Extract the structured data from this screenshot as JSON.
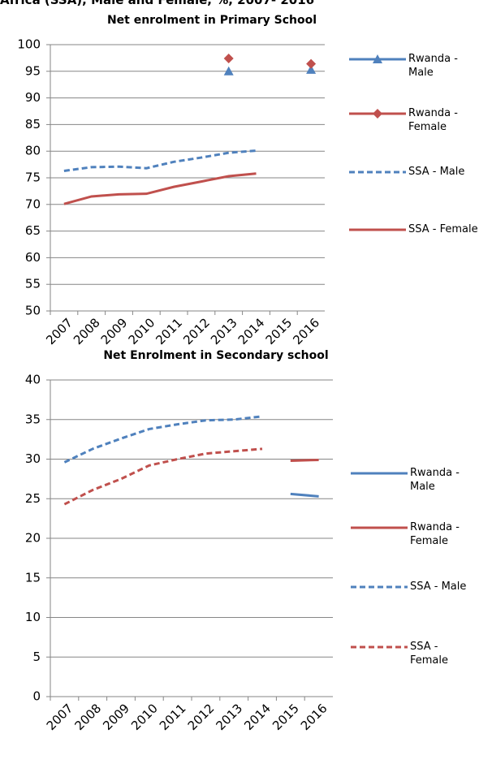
{
  "heading": "Africa (SSA), Male and Female, %, 2007- 2016",
  "chart_data": [
    {
      "type": "line",
      "title": "Net enrolment in Primary School",
      "categories": [
        "2007",
        "2008",
        "2009",
        "2010",
        "2011",
        "2012",
        "2013",
        "2014",
        "2015",
        "2016"
      ],
      "ylim": [
        50,
        100
      ],
      "yticks": [
        50,
        55,
        60,
        65,
        70,
        75,
        80,
        85,
        90,
        95,
        100
      ],
      "grid": true,
      "legend": "right",
      "series": [
        {
          "name": "Rwanda - Male",
          "color": "#4f81bd",
          "marker": "triangle",
          "dashed": false,
          "values": [
            null,
            null,
            null,
            null,
            null,
            null,
            95,
            null,
            null,
            95.3
          ]
        },
        {
          "name": "Rwanda - Female",
          "color": "#c0504d",
          "marker": "diamond",
          "dashed": false,
          "values": [
            null,
            null,
            null,
            null,
            null,
            null,
            97.4,
            null,
            null,
            96.4
          ]
        },
        {
          "name": "SSA - Male",
          "color": "#4f81bd",
          "dashed": true,
          "values": [
            76.3,
            77,
            77.1,
            76.8,
            78,
            78.8,
            79.7,
            80.1,
            null,
            null
          ]
        },
        {
          "name": "SSA - Female",
          "color": "#c0504d",
          "dashed": false,
          "values": [
            70.1,
            71.5,
            71.9,
            72,
            73.3,
            74.3,
            75.3,
            75.8,
            null,
            null
          ]
        }
      ]
    },
    {
      "type": "line",
      "title": "Net Enrolment in Secondary school",
      "categories": [
        "2007",
        "2008",
        "2009",
        "2010",
        "2011",
        "2012",
        "2013",
        "2014",
        "2015",
        "2016"
      ],
      "ylim": [
        0,
        40
      ],
      "yticks": [
        0,
        5,
        10,
        15,
        20,
        25,
        30,
        35,
        40
      ],
      "grid": true,
      "legend": "right",
      "series": [
        {
          "name": "Rwanda - Male",
          "color": "#4f81bd",
          "dashed": false,
          "values": [
            null,
            null,
            null,
            null,
            null,
            null,
            null,
            null,
            25.6,
            25.3
          ]
        },
        {
          "name": "Rwanda - Female",
          "color": "#c0504d",
          "dashed": false,
          "values": [
            null,
            null,
            null,
            null,
            null,
            null,
            null,
            null,
            29.8,
            29.9
          ]
        },
        {
          "name": "SSA - Male",
          "color": "#4f81bd",
          "dashed": true,
          "values": [
            29.6,
            31.3,
            32.6,
            33.8,
            34.4,
            34.9,
            35.0,
            35.4,
            null,
            null
          ]
        },
        {
          "name": "SSA - Female",
          "color": "#c0504d",
          "dashed": true,
          "values": [
            24.3,
            26.1,
            27.5,
            29.2,
            30.0,
            30.7,
            31.0,
            31.3,
            null,
            null
          ]
        }
      ]
    }
  ]
}
